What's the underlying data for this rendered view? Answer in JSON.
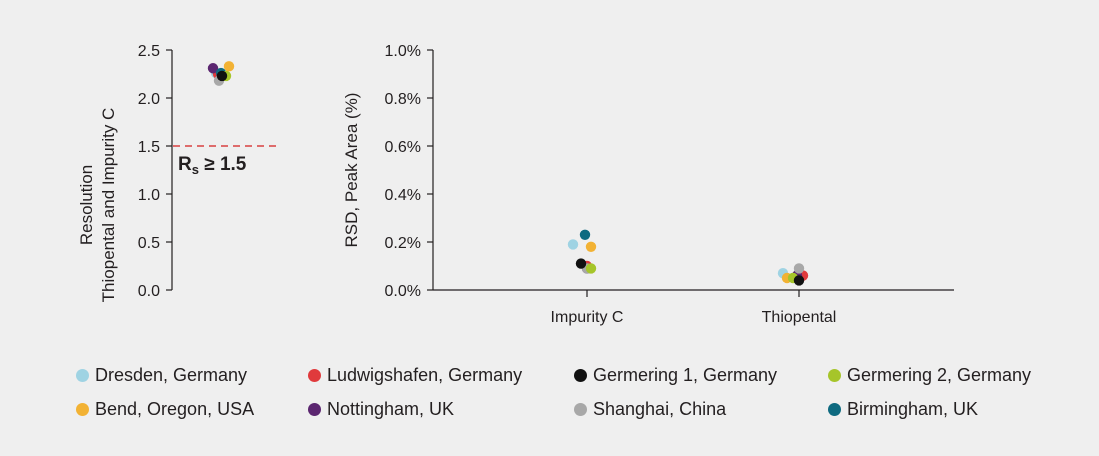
{
  "colors": {
    "background": "#efefef",
    "axis": "#231f20",
    "threshold_line": "#d94040"
  },
  "legend": [
    {
      "name": "Dresden, Germany",
      "color": "#9fd3e3"
    },
    {
      "name": "Ludwigshafen, Germany",
      "color": "#e03a3c"
    },
    {
      "name": "Germering 1, Germany",
      "color": "#111111"
    },
    {
      "name": "Germering 2, Germany",
      "color": "#a6c52a"
    },
    {
      "name": "Bend, Oregon, USA",
      "color": "#f2b234"
    },
    {
      "name": "Nottingham, UK",
      "color": "#5b2670"
    },
    {
      "name": "Shanghai, China",
      "color": "#a8a8a8"
    },
    {
      "name": "Birmingham, UK",
      "color": "#0e6a80"
    }
  ],
  "chart_data": [
    {
      "type": "scatter",
      "title": "",
      "ylabel_lines": [
        "Resolution",
        "Thiopental and Impurity C"
      ],
      "ylim": [
        0,
        2.5
      ],
      "yticks": [
        "0.0",
        "0.5",
        "1.0",
        "1.5",
        "2.0",
        "2.5"
      ],
      "grid": false,
      "threshold": {
        "value": 1.5,
        "label_main": "R",
        "label_sub": "s",
        "label_rest": " ≥ 1.5"
      },
      "series": [
        {
          "name": "Dresden, Germany",
          "values": [
            2.26
          ]
        },
        {
          "name": "Ludwigshafen, Germany",
          "values": [
            2.25
          ]
        },
        {
          "name": "Germering 1, Germany",
          "values": [
            2.23
          ]
        },
        {
          "name": "Germering 2, Germany",
          "values": [
            2.23
          ]
        },
        {
          "name": "Bend, Oregon, USA",
          "values": [
            2.33
          ]
        },
        {
          "name": "Nottingham, UK",
          "values": [
            2.31
          ]
        },
        {
          "name": "Shanghai, China",
          "values": [
            2.18
          ]
        },
        {
          "name": "Birmingham, UK",
          "values": [
            2.26
          ]
        }
      ]
    },
    {
      "type": "scatter",
      "title": "",
      "ylabel": "RSD, Peak Area (%)",
      "categories": [
        "Impurity C",
        "Thiopental"
      ],
      "ylim": [
        0,
        1.0
      ],
      "yticks": [
        "0.0%",
        "0.2%",
        "0.4%",
        "0.6%",
        "0.8%",
        "1.0%"
      ],
      "grid": false,
      "series": [
        {
          "name": "Dresden, Germany",
          "values": [
            0.19,
            0.07
          ]
        },
        {
          "name": "Ludwigshafen, Germany",
          "values": [
            0.1,
            0.06
          ]
        },
        {
          "name": "Germering 1, Germany",
          "values": [
            0.11,
            0.04
          ]
        },
        {
          "name": "Germering 2, Germany",
          "values": [
            0.09,
            0.05
          ]
        },
        {
          "name": "Bend, Oregon, USA",
          "values": [
            0.18,
            0.05
          ]
        },
        {
          "name": "Nottingham, UK",
          "values": [
            0.09,
            0.06
          ]
        },
        {
          "name": "Shanghai, China",
          "values": [
            0.09,
            0.09
          ]
        },
        {
          "name": "Birmingham, UK",
          "values": [
            0.23,
            0.07
          ]
        }
      ]
    }
  ]
}
